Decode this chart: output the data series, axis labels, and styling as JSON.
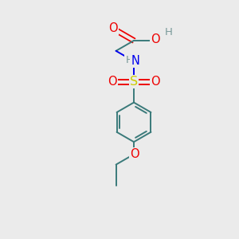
{
  "background_color": "#ebebeb",
  "fig_size": [
    3.0,
    3.0
  ],
  "dpi": 100,
  "atom_colors": {
    "C": "#3a7a7a",
    "H": "#7a9a9a",
    "N": "#0000ee",
    "O": "#ee0000",
    "S": "#cccc00"
  },
  "bond_color": "#3a7a7a",
  "bond_width": 1.4,
  "font_size": 9.5,
  "xlim": [
    -0.3,
    0.3
  ],
  "ylim": [
    -0.5,
    0.82
  ]
}
